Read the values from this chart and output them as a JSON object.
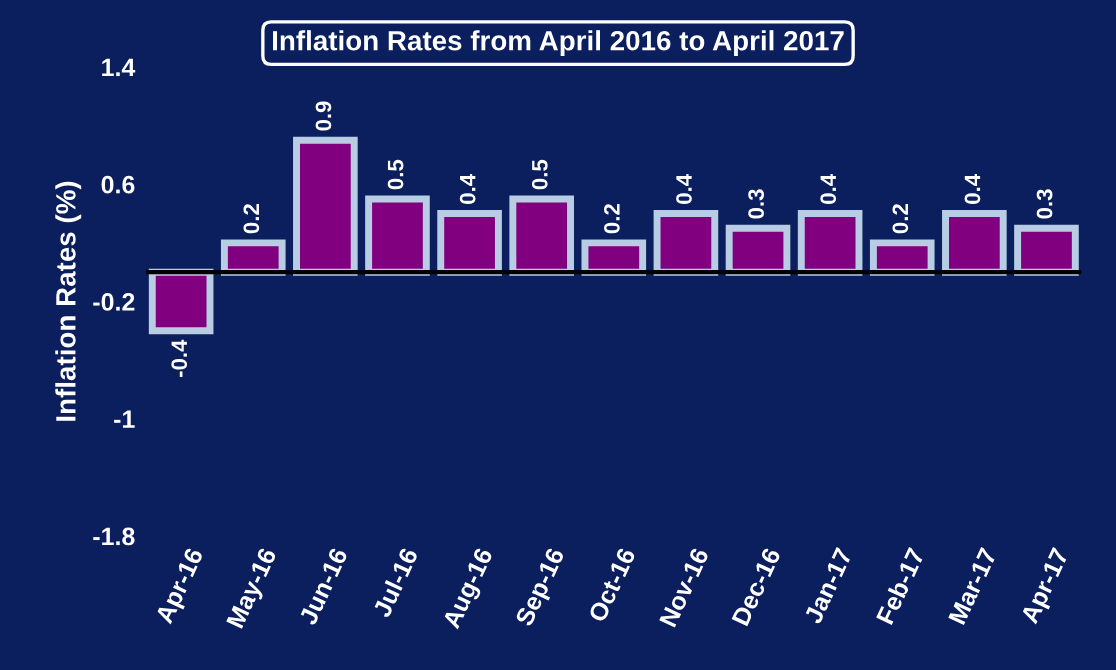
{
  "chart_data": {
    "type": "bar",
    "title": "Inflation Rates from April 2016 to April 2017",
    "ylabel": "Inflation Rates (%)",
    "categories": [
      "Apr-16",
      "May-16",
      "Jun-16",
      "Jul-16",
      "Aug-16",
      "Sep-16",
      "Oct-16",
      "Nov-16",
      "Dec-16",
      "Jan-17",
      "Feb-17",
      "Mar-17",
      "Apr-17"
    ],
    "values": [
      -0.4,
      0.2,
      0.9,
      0.5,
      0.4,
      0.5,
      0.2,
      0.4,
      0.3,
      0.4,
      0.2,
      0.4,
      0.3
    ],
    "color": "#800080",
    "ylim": [
      -1.8,
      1.4
    ],
    "yticks": [
      -1.8,
      -1,
      -0.2,
      0.6,
      1.4
    ],
    "grid": false,
    "data_labels": true
  }
}
